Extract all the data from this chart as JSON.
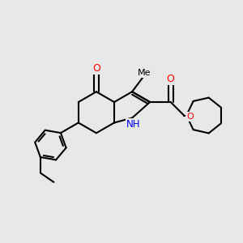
{
  "background_color": "#e8e8e8",
  "bond_color": "#000000",
  "bond_width": 1.5,
  "atom_colors": {
    "O": "#ff0000",
    "N": "#0000ee",
    "C": "#000000"
  }
}
